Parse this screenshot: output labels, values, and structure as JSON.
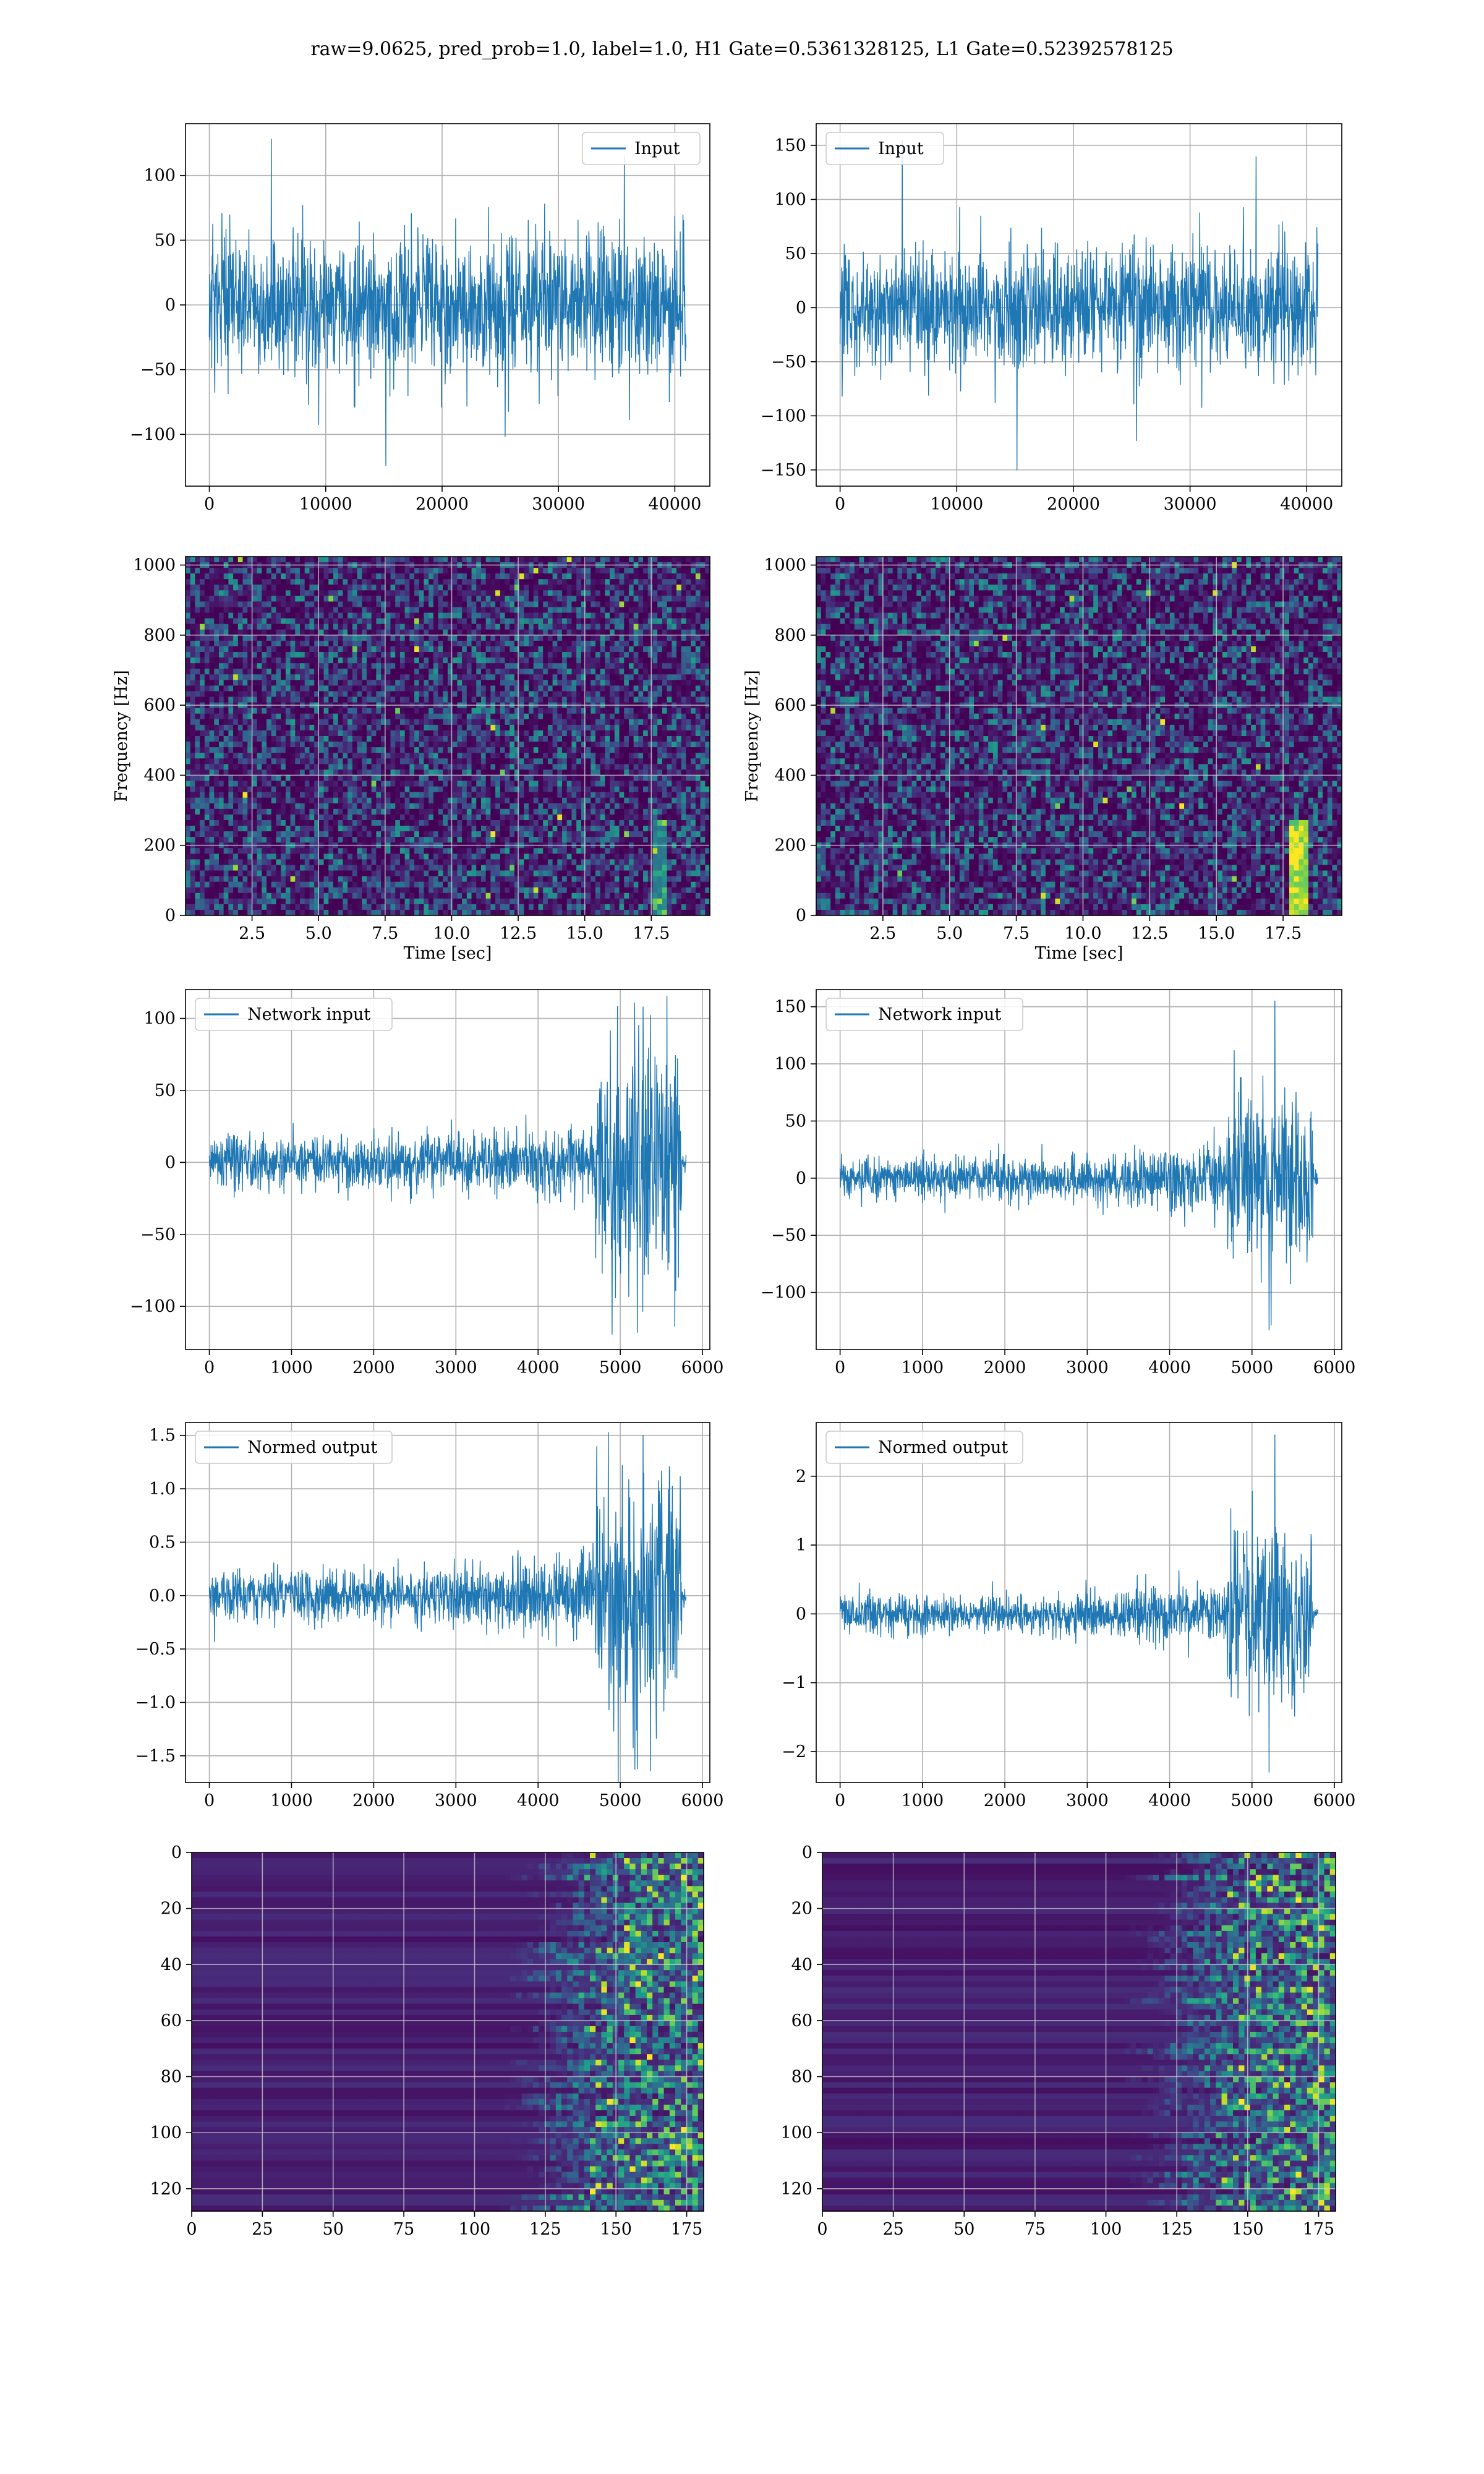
{
  "figure": {
    "title": "raw=9.0625, pred_prob=1.0, label=1.0, H1 Gate=0.5361328125, L1 Gate=0.52392578125"
  },
  "colors": {
    "line": "#1f77b4",
    "grid": "#b0b0b0",
    "viridis_low": "#440154",
    "viridis_mid": "#21918c",
    "viridis_high": "#fde725"
  },
  "chart_data": [
    {
      "id": "h1-input",
      "type": "line",
      "x_range": [
        0,
        40960
      ],
      "xlim": [
        -2048,
        43008
      ],
      "ylim": [
        -140,
        140
      ],
      "xticks": [
        0,
        10000,
        20000,
        30000,
        40000
      ],
      "xtick_labels": [
        "0",
        "10000",
        "20000",
        "30000",
        "40000"
      ],
      "yticks": [
        -100,
        -50,
        0,
        50,
        100
      ],
      "ytick_labels": [
        "−100",
        "−50",
        "0",
        "50",
        "100"
      ],
      "legend": "Input",
      "legend_loc": "upper right",
      "signal": {
        "kind": "noise",
        "std": 28,
        "peak_max": 128,
        "peak_min": -124
      },
      "grid": true
    },
    {
      "id": "l1-input",
      "type": "line",
      "x_range": [
        0,
        40960
      ],
      "xlim": [
        -2048,
        43008
      ],
      "ylim": [
        -165,
        170
      ],
      "xticks": [
        0,
        10000,
        20000,
        30000,
        40000
      ],
      "xtick_labels": [
        "0",
        "10000",
        "20000",
        "30000",
        "40000"
      ],
      "yticks": [
        -150,
        -100,
        -50,
        0,
        50,
        100,
        150
      ],
      "ytick_labels": [
        "−150",
        "−100",
        "−50",
        "0",
        "50",
        "100",
        "150"
      ],
      "legend": "Input",
      "legend_loc": "upper left",
      "signal": {
        "kind": "noise",
        "std": 28,
        "peak_max": 155,
        "peak_min": -150
      },
      "grid": true
    },
    {
      "id": "h1-spectrogram",
      "type": "heatmap",
      "xlim": [
        0,
        19.7
      ],
      "ylim": [
        0,
        1024
      ],
      "xticks": [
        2.5,
        5,
        7.5,
        10,
        12.5,
        15,
        17.5
      ],
      "xtick_labels": [
        "2.5",
        "5.0",
        "7.5",
        "10.0",
        "12.5",
        "15.0",
        "17.5"
      ],
      "yticks": [
        0,
        200,
        400,
        600,
        800,
        1000
      ],
      "ytick_labels": [
        "0",
        "200",
        "400",
        "600",
        "800",
        "1000"
      ],
      "xlabel": "Time [sec]",
      "ylabel": "Frequency [Hz]",
      "colormap": "viridis",
      "chirp": {
        "time": 17.8,
        "strength": 0.5
      },
      "grid": true
    },
    {
      "id": "l1-spectrogram",
      "type": "heatmap",
      "xlim": [
        0,
        19.7
      ],
      "ylim": [
        0,
        1024
      ],
      "xticks": [
        2.5,
        5,
        7.5,
        10,
        12.5,
        15,
        17.5
      ],
      "xtick_labels": [
        "2.5",
        "5.0",
        "7.5",
        "10.0",
        "12.5",
        "15.0",
        "17.5"
      ],
      "yticks": [
        0,
        200,
        400,
        600,
        800,
        1000
      ],
      "ytick_labels": [
        "0",
        "200",
        "400",
        "600",
        "800",
        "1000"
      ],
      "xlabel": "Time [sec]",
      "ylabel": "Frequency [Hz]",
      "colormap": "viridis",
      "chirp": {
        "time": 18.0,
        "strength": 1.0
      },
      "grid": true
    },
    {
      "id": "h1-network-input",
      "type": "line",
      "x_range": [
        0,
        5800
      ],
      "xlim": [
        -290,
        6090
      ],
      "ylim": [
        -130,
        120
      ],
      "xticks": [
        0,
        1000,
        2000,
        3000,
        4000,
        5000,
        6000
      ],
      "xtick_labels": [
        "0",
        "1000",
        "2000",
        "3000",
        "4000",
        "5000",
        "6000"
      ],
      "yticks": [
        -100,
        -50,
        0,
        50,
        100
      ],
      "ytick_labels": [
        "−100",
        "−50",
        "0",
        "50",
        "100"
      ],
      "legend": "Network input",
      "legend_loc": "upper left",
      "signal": {
        "kind": "burst",
        "base": 9,
        "burst_start": 4700,
        "burst_end": 5750,
        "burst_amp": 42,
        "peak_max": 108,
        "peak_min": -118
      },
      "grid": true
    },
    {
      "id": "l1-network-input",
      "type": "line",
      "x_range": [
        0,
        5800
      ],
      "xlim": [
        -290,
        6090
      ],
      "ylim": [
        -150,
        165
      ],
      "xticks": [
        0,
        1000,
        2000,
        3000,
        4000,
        5000,
        6000
      ],
      "xtick_labels": [
        "0",
        "1000",
        "2000",
        "3000",
        "4000",
        "5000",
        "6000"
      ],
      "yticks": [
        -100,
        -50,
        0,
        50,
        100,
        150
      ],
      "ytick_labels": [
        "−100",
        "−50",
        "0",
        "50",
        "100",
        "150"
      ],
      "legend": "Network input",
      "legend_loc": "upper left",
      "signal": {
        "kind": "burst",
        "base": 10,
        "burst_start": 4700,
        "burst_end": 5750,
        "burst_amp": 38,
        "peak_max": 155,
        "peak_min": -133
      },
      "grid": true
    },
    {
      "id": "h1-normed-output",
      "type": "line",
      "x_range": [
        0,
        5800
      ],
      "xlim": [
        -290,
        6090
      ],
      "ylim": [
        -1.75,
        1.62
      ],
      "xticks": [
        0,
        1000,
        2000,
        3000,
        4000,
        5000,
        6000
      ],
      "xtick_labels": [
        "0",
        "1000",
        "2000",
        "3000",
        "4000",
        "5000",
        "6000"
      ],
      "yticks": [
        -1.5,
        -1.0,
        -0.5,
        0.0,
        0.5,
        1.0,
        1.5
      ],
      "ytick_labels": [
        "−1.5",
        "−1.0",
        "−0.5",
        "0.0",
        "0.5",
        "1.0",
        "1.5"
      ],
      "legend": "Normed output",
      "legend_loc": "upper left",
      "signal": {
        "kind": "burst",
        "base": 0.12,
        "burst_start": 4700,
        "burst_end": 5750,
        "burst_amp": 0.58,
        "peak_max": 1.5,
        "peak_min": -1.62
      },
      "grid": true
    },
    {
      "id": "l1-normed-output",
      "type": "line",
      "x_range": [
        0,
        5800
      ],
      "xlim": [
        -290,
        6090
      ],
      "ylim": [
        -2.45,
        2.78
      ],
      "xticks": [
        0,
        1000,
        2000,
        3000,
        4000,
        5000,
        6000
      ],
      "xtick_labels": [
        "0",
        "1000",
        "2000",
        "3000",
        "4000",
        "5000",
        "6000"
      ],
      "yticks": [
        -2,
        -1,
        0,
        1,
        2
      ],
      "ytick_labels": [
        "−2",
        "−1",
        "0",
        "1",
        "2"
      ],
      "legend": "Normed output",
      "legend_loc": "upper left",
      "signal": {
        "kind": "burst",
        "base": 0.14,
        "burst_start": 4700,
        "burst_end": 5750,
        "burst_amp": 0.62,
        "peak_max": 2.6,
        "peak_min": -2.3
      },
      "grid": true
    },
    {
      "id": "h1-feature-map",
      "type": "heatmap",
      "xlim": [
        0,
        181
      ],
      "ylim": [
        128,
        0
      ],
      "xticks": [
        0,
        25,
        50,
        75,
        100,
        125,
        150,
        175
      ],
      "xtick_labels": [
        "0",
        "25",
        "50",
        "75",
        "100",
        "125",
        "150",
        "175"
      ],
      "yticks": [
        0,
        20,
        40,
        60,
        80,
        100,
        120
      ],
      "ytick_labels": [
        "0",
        "20",
        "40",
        "60",
        "80",
        "100",
        "120"
      ],
      "colormap": "viridis",
      "activity_from": 115,
      "grid": true
    },
    {
      "id": "l1-feature-map",
      "type": "heatmap",
      "xlim": [
        0,
        181
      ],
      "ylim": [
        128,
        0
      ],
      "xticks": [
        0,
        25,
        50,
        75,
        100,
        125,
        150,
        175
      ],
      "xtick_labels": [
        "0",
        "25",
        "50",
        "75",
        "100",
        "125",
        "150",
        "175"
      ],
      "yticks": [
        0,
        20,
        40,
        60,
        80,
        100,
        120
      ],
      "ytick_labels": [
        "0",
        "20",
        "40",
        "60",
        "80",
        "100",
        "120"
      ],
      "colormap": "viridis",
      "activity_from": 112,
      "grid": true
    }
  ]
}
